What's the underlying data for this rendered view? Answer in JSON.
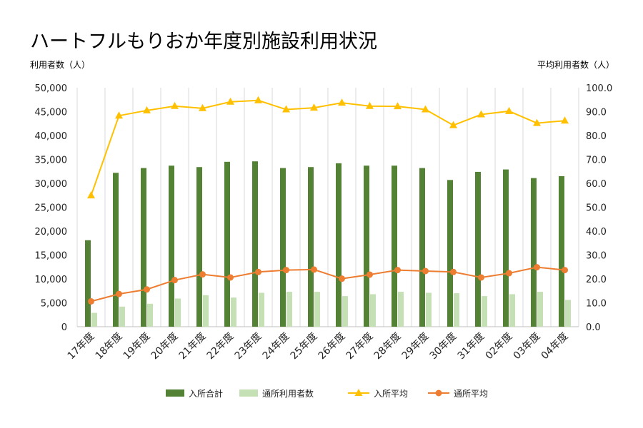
{
  "chart_data": {
    "type": "bar",
    "title": "ハートフルもりおか年度別施設利用状況",
    "ylabel": "利用者数（人）",
    "y2label": "平均利用者数（人）",
    "ylim": [
      0,
      50000
    ],
    "y2lim": [
      0,
      100
    ],
    "yticks": [
      "0",
      "5,000",
      "10,000",
      "15,000",
      "20,000",
      "25,000",
      "30,000",
      "35,000",
      "40,000",
      "45,000",
      "50,000"
    ],
    "y2ticks": [
      "0.0",
      "10.0",
      "20.0",
      "30.0",
      "40.0",
      "50.0",
      "60.0",
      "70.0",
      "80.0",
      "90.0",
      "100.0"
    ],
    "grid": "vertical",
    "legend_position": "bottom",
    "categories": [
      "17年度",
      "18年度",
      "19年度",
      "20年度",
      "21年度",
      "22年度",
      "23年度",
      "24年度",
      "25年度",
      "26年度",
      "27年度",
      "28年度",
      "29年度",
      "30年度",
      "31年度",
      "02年度",
      "03年度",
      "04年度"
    ],
    "series": [
      {
        "name": "入所合計",
        "type": "bar",
        "axis": "left",
        "color": "#548235",
        "values": [
          18100,
          32200,
          33200,
          33700,
          33400,
          34500,
          34600,
          33200,
          33400,
          34200,
          33700,
          33700,
          33200,
          30700,
          32400,
          32900,
          31100,
          31500
        ]
      },
      {
        "name": "通所利用者数",
        "type": "bar",
        "axis": "left",
        "color": "#c5e0b4",
        "values": [
          2900,
          4200,
          4800,
          5900,
          6600,
          6100,
          7100,
          7300,
          7300,
          6400,
          6800,
          7300,
          7100,
          7000,
          6400,
          6800,
          7300,
          5600
        ]
      },
      {
        "name": "入所平均",
        "type": "line",
        "axis": "right",
        "color": "#ffc000",
        "marker": "triangle",
        "values": [
          54.9,
          88.3,
          90.5,
          92.3,
          91.4,
          94.1,
          94.7,
          90.9,
          91.6,
          93.7,
          92.3,
          92.2,
          90.9,
          84.3,
          88.8,
          90.2,
          85.2,
          86.2
        ]
      },
      {
        "name": "通所平均",
        "type": "line",
        "axis": "right",
        "color": "#ed7d31",
        "marker": "circle",
        "values": [
          10.6,
          13.7,
          15.6,
          19.5,
          21.9,
          20.6,
          22.9,
          23.7,
          23.9,
          20.1,
          21.8,
          23.7,
          23.3,
          22.9,
          20.6,
          22.4,
          24.9,
          23.7
        ]
      }
    ]
  }
}
